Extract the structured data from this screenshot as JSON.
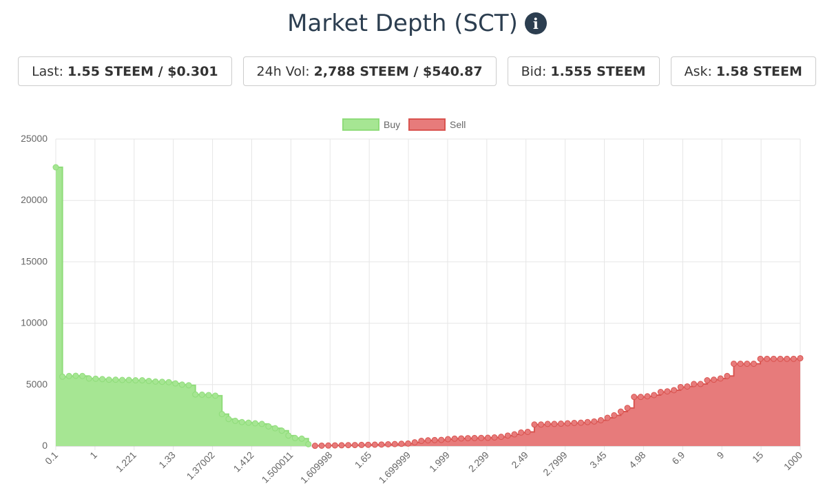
{
  "header": {
    "title": "Market Depth (SCT)",
    "info_icon": "info-circle-icon"
  },
  "stats": [
    {
      "label": "Last:",
      "value": "1.55 STEEM / $0.301"
    },
    {
      "label": "24h Vol:",
      "value": "2,788 STEEM / $540.87"
    },
    {
      "label": "Bid:",
      "value": "1.555 STEEM"
    },
    {
      "label": "Ask:",
      "value": "1.58 STEEM"
    }
  ],
  "chart_data": {
    "type": "area",
    "step": true,
    "legend": {
      "position": "top-center",
      "items": [
        "Buy",
        "Sell"
      ]
    },
    "colors": {
      "buy_fill": "#a6e693",
      "buy_line": "#8fdc7a",
      "sell_fill": "#e77b7b",
      "sell_line": "#d9534f",
      "grid": "#e6e6e6"
    },
    "x_tick_labels": [
      "0.1",
      "1",
      "1.221",
      "1.33",
      "1.37002",
      "1.412",
      "1.500011",
      "1.609998",
      "1.65",
      "1.699999",
      "1.999",
      "2.299",
      "2.49",
      "2.7999",
      "3.45",
      "4.98",
      "6.9",
      "9",
      "15",
      "1000"
    ],
    "ylim": [
      0,
      25000
    ],
    "yticks": [
      0,
      5000,
      10000,
      15000,
      20000,
      25000
    ],
    "grid": true,
    "series": [
      {
        "name": "Buy",
        "values": [
          22700,
          5650,
          5700,
          5720,
          5700,
          5500,
          5480,
          5450,
          5400,
          5400,
          5380,
          5380,
          5350,
          5350,
          5300,
          5250,
          5230,
          5200,
          5100,
          5000,
          4950,
          4200,
          4180,
          4150,
          4100,
          2600,
          2200,
          2050,
          1950,
          1900,
          1850,
          1800,
          1600,
          1450,
          1250,
          850,
          650,
          600,
          150
        ]
      },
      {
        "name": "Sell",
        "values": [
          20,
          30,
          40,
          50,
          60,
          70,
          80,
          90,
          100,
          110,
          120,
          140,
          160,
          180,
          200,
          300,
          420,
          460,
          480,
          500,
          560,
          600,
          620,
          640,
          650,
          660,
          670,
          700,
          750,
          850,
          950,
          1100,
          1150,
          1750,
          1750,
          1800,
          1800,
          1820,
          1850,
          1880,
          1900,
          1950,
          2000,
          2100,
          2300,
          2500,
          2800,
          3100,
          4000,
          4000,
          4050,
          4150,
          4400,
          4450,
          4550,
          4800,
          4850,
          5050,
          5050,
          5350,
          5400,
          5500,
          5700,
          6700,
          6700,
          6700,
          6700,
          7100,
          7100,
          7100,
          7100,
          7100,
          7100,
          7150
        ]
      }
    ]
  }
}
